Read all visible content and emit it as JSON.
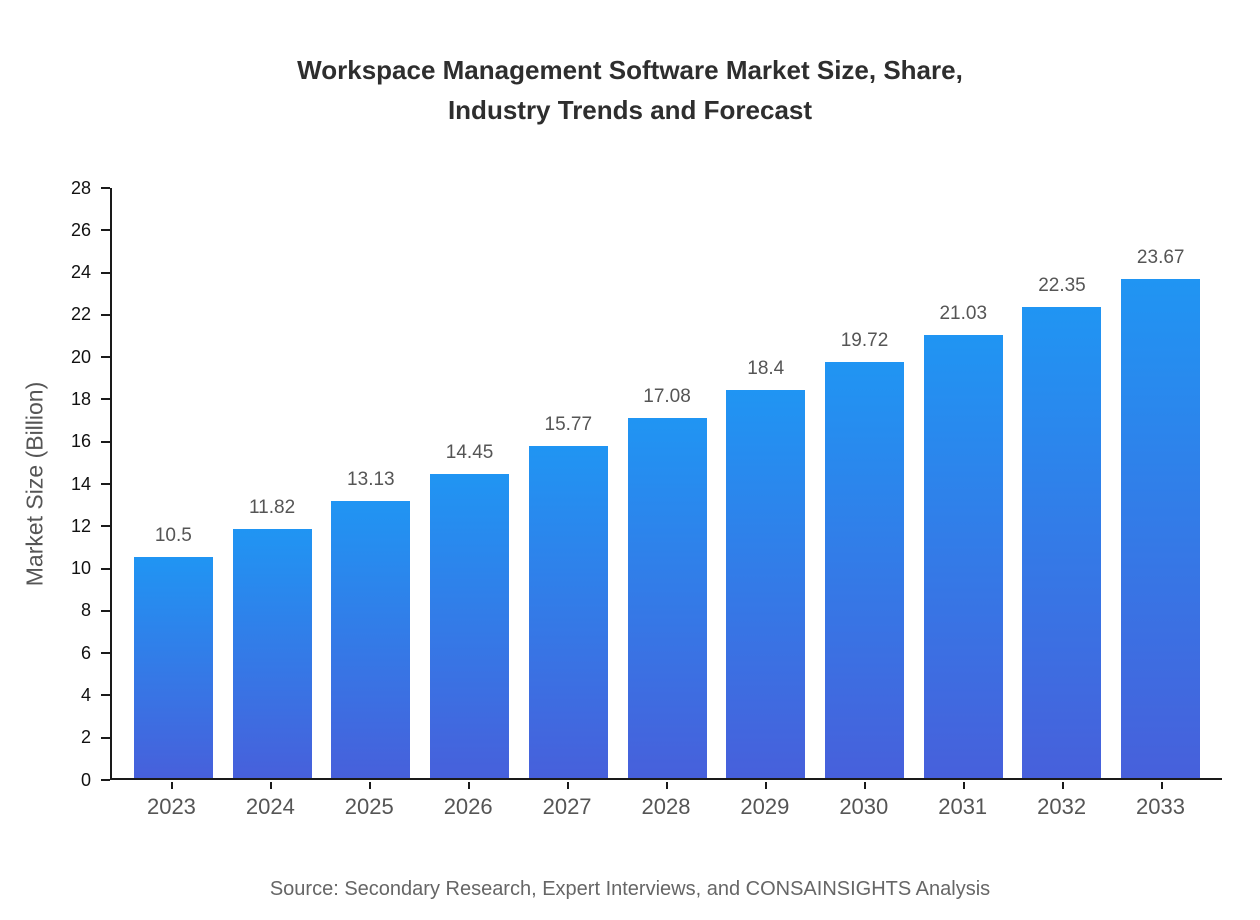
{
  "source_note": "Source: Secondary Research, Expert Interviews, and CONSAINSIGHTS Analysis",
  "chart_data": {
    "type": "bar",
    "title": "Workspace Management Software Market Size, Share,\nIndustry Trends and Forecast",
    "categories": [
      "2023",
      "2024",
      "2025",
      "2026",
      "2027",
      "2028",
      "2029",
      "2030",
      "2031",
      "2032",
      "2033"
    ],
    "values": [
      10.5,
      11.82,
      13.13,
      14.45,
      15.77,
      17.08,
      18.4,
      19.72,
      21.03,
      22.35,
      23.67
    ],
    "xlabel": "",
    "ylabel": "Market Size (Billion)",
    "ylim": [
      0,
      28
    ],
    "ytick_step": 2,
    "grid": false,
    "legend": false,
    "value_labels": true,
    "bar_color_top": "#2095f3",
    "bar_color_bottom": "#4760db",
    "axis_color": "#1a1a1a"
  }
}
